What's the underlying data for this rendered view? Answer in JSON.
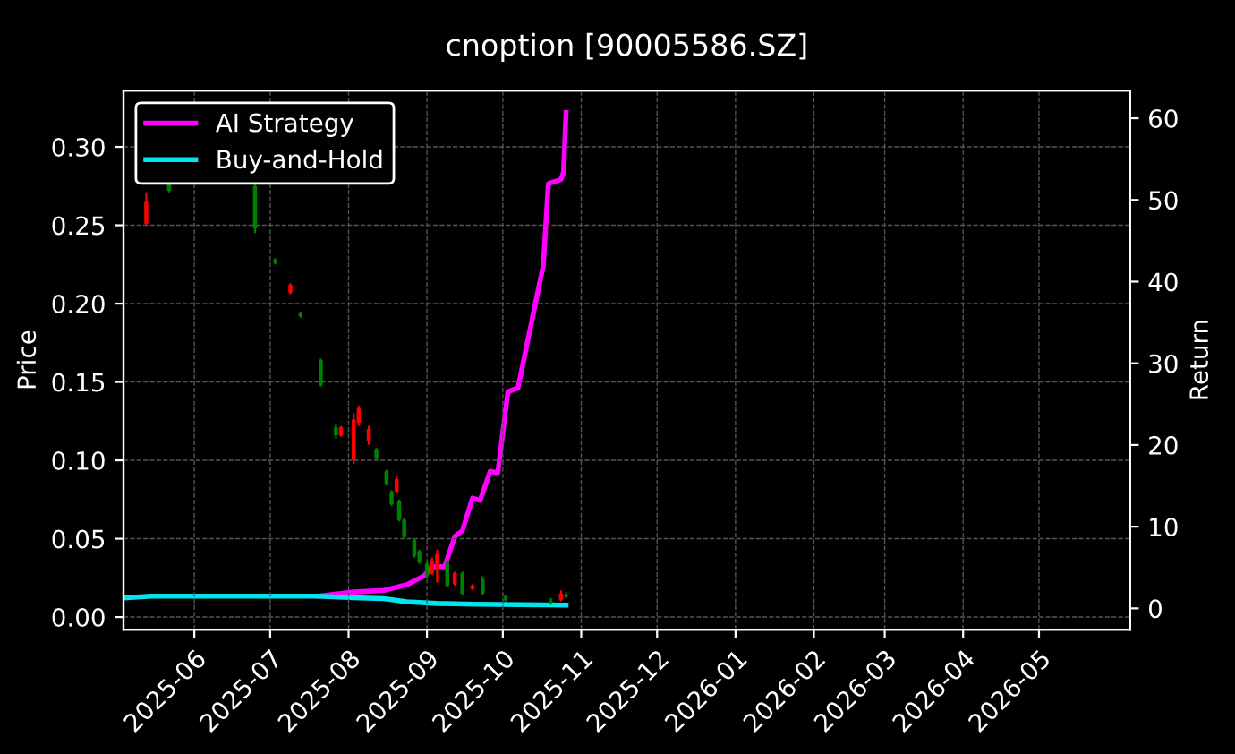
{
  "chart_data": {
    "type": "candlestick",
    "title": "cnoption [90005586.SZ]",
    "ylabel": "Price",
    "y2label": "Return",
    "x": [
      "2025-05-13",
      "2025-05-22",
      "2025-06-25",
      "2025-07-03",
      "2025-07-09",
      "2025-07-13",
      "2025-07-21",
      "2025-07-27",
      "2025-07-29",
      "2025-08-03",
      "2025-08-05",
      "2025-08-09",
      "2025-08-12",
      "2025-08-16",
      "2025-08-18",
      "2025-08-20",
      "2025-08-21",
      "2025-08-23",
      "2025-08-27",
      "2025-08-29",
      "2025-09-01",
      "2025-09-03",
      "2025-09-05",
      "2025-09-09",
      "2025-09-12",
      "2025-09-15",
      "2025-09-19",
      "2025-09-23",
      "2025-10-02",
      "2025-10-20",
      "2025-10-24",
      "2025-10-26"
    ],
    "ohlc": [
      [
        0.251,
        0.271,
        0.25,
        0.265
      ],
      [
        0.277,
        0.278,
        0.271,
        0.272
      ],
      [
        0.275,
        0.278,
        0.245,
        0.248
      ],
      [
        0.228,
        0.229,
        0.225,
        0.226
      ],
      [
        0.207,
        0.213,
        0.206,
        0.212
      ],
      [
        0.194,
        0.195,
        0.191,
        0.192
      ],
      [
        0.164,
        0.165,
        0.147,
        0.148
      ],
      [
        0.121,
        0.123,
        0.114,
        0.116
      ],
      [
        0.116,
        0.122,
        0.115,
        0.121
      ],
      [
        0.1,
        0.13,
        0.098,
        0.126
      ],
      [
        0.124,
        0.135,
        0.122,
        0.133
      ],
      [
        0.112,
        0.122,
        0.11,
        0.12
      ],
      [
        0.107,
        0.108,
        0.1,
        0.101
      ],
      [
        0.093,
        0.094,
        0.084,
        0.085
      ],
      [
        0.08,
        0.081,
        0.071,
        0.072
      ],
      [
        0.08,
        0.09,
        0.079,
        0.088
      ],
      [
        0.074,
        0.075,
        0.061,
        0.062
      ],
      [
        0.062,
        0.063,
        0.05,
        0.051
      ],
      [
        0.049,
        0.05,
        0.038,
        0.039
      ],
      [
        0.042,
        0.043,
        0.034,
        0.035
      ],
      [
        0.034,
        0.035,
        0.025,
        0.026
      ],
      [
        0.028,
        0.038,
        0.027,
        0.036
      ],
      [
        0.03,
        0.043,
        0.022,
        0.04
      ],
      [
        0.035,
        0.036,
        0.019,
        0.02
      ],
      [
        0.021,
        0.029,
        0.02,
        0.028
      ],
      [
        0.028,
        0.029,
        0.014,
        0.015
      ],
      [
        0.018,
        0.021,
        0.017,
        0.02
      ],
      [
        0.024,
        0.026,
        0.014,
        0.015
      ],
      [
        0.013,
        0.014,
        0.01,
        0.011
      ],
      [
        0.01,
        0.012,
        0.008,
        0.009
      ],
      [
        0.011,
        0.017,
        0.01,
        0.015
      ],
      [
        0.014,
        0.016,
        0.012,
        0.013
      ]
    ],
    "colors": [
      "#ff0000",
      "#008000",
      "#008000",
      "#008000",
      "#ff0000",
      "#008000",
      "#008000",
      "#008000",
      "#ff0000",
      "#ff0000",
      "#ff0000",
      "#ff0000",
      "#008000",
      "#008000",
      "#008000",
      "#ff0000",
      "#008000",
      "#008000",
      "#008000",
      "#008000",
      "#008000",
      "#ff0000",
      "#ff0000",
      "#008000",
      "#ff0000",
      "#008000",
      "#ff0000",
      "#008000",
      "#008000",
      "#008000",
      "#ff0000",
      "#008000"
    ],
    "series": [
      {
        "name": "AI Strategy",
        "type": "line",
        "axis": "y2",
        "color": "#ff00ff",
        "x": [
          "2025-07-20",
          "2025-08-03",
          "2025-08-15",
          "2025-08-24",
          "2025-08-31",
          "2025-09-03",
          "2025-09-08",
          "2025-09-12",
          "2025-09-15",
          "2025-09-19",
          "2025-09-22",
          "2025-09-26",
          "2025-09-29",
          "2025-10-03",
          "2025-10-07",
          "2025-10-17",
          "2025-10-19",
          "2025-10-24",
          "2025-10-25",
          "2025-10-26"
        ],
        "values": [
          1.5,
          2.0,
          2.2,
          2.9,
          4.0,
          5.1,
          5.1,
          8.8,
          9.5,
          13.5,
          13.2,
          16.8,
          16.6,
          26.5,
          27.0,
          42,
          52,
          52.5,
          53.4,
          60.7
        ]
      },
      {
        "name": "Buy-and-Hold",
        "type": "line",
        "axis": "y2",
        "color": "#00e5ee",
        "x": [
          "2025-05-05",
          "2025-05-15",
          "2025-07-20",
          "2025-08-03",
          "2025-08-15",
          "2025-08-24",
          "2025-09-05",
          "2025-09-20",
          "2025-10-26"
        ],
        "values": [
          1.3,
          1.5,
          1.5,
          1.3,
          1.2,
          0.8,
          0.6,
          0.5,
          0.4
        ]
      }
    ],
    "xlim": [
      "2025-05-04",
      "2026-06-06"
    ],
    "xticks": [
      {
        "value": "2025-06-01",
        "label": "2025-06"
      },
      {
        "value": "2025-07-01",
        "label": "2025-07"
      },
      {
        "value": "2025-08-01",
        "label": "2025-08"
      },
      {
        "value": "2025-09-01",
        "label": "2025-09"
      },
      {
        "value": "2025-10-01",
        "label": "2025-10"
      },
      {
        "value": "2025-11-01",
        "label": "2025-11"
      },
      {
        "value": "2025-12-01",
        "label": "2025-12"
      },
      {
        "value": "2026-01-01",
        "label": "2026-01"
      },
      {
        "value": "2026-02-01",
        "label": "2026-02"
      },
      {
        "value": "2026-03-01",
        "label": "2026-03"
      },
      {
        "value": "2026-04-01",
        "label": "2026-04"
      },
      {
        "value": "2026-05-01",
        "label": "2026-05"
      }
    ],
    "ylim": [
      -0.008,
      0.336
    ],
    "yticks": [
      {
        "value": 0,
        "label": "0.00"
      },
      {
        "value": 0.05,
        "label": "0.05"
      },
      {
        "value": 0.1,
        "label": "0.10"
      },
      {
        "value": 0.15,
        "label": "0.15"
      },
      {
        "value": 0.2,
        "label": "0.20"
      },
      {
        "value": 0.25,
        "label": "0.25"
      },
      {
        "value": 0.3,
        "label": "0.30"
      }
    ],
    "y2lim": [
      -2.6,
      63.4
    ],
    "y2ticks": [
      0,
      10,
      20,
      30,
      40,
      50,
      60
    ],
    "grid": true,
    "legend": "top left"
  }
}
